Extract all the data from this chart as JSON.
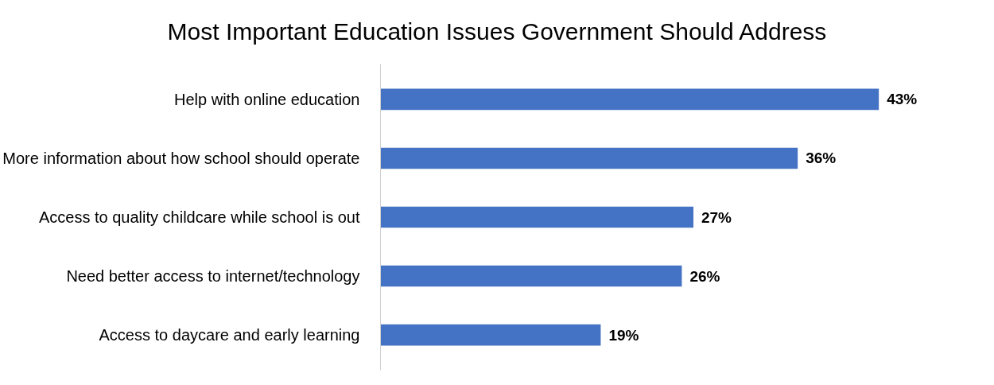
{
  "chart_data": {
    "type": "bar",
    "orientation": "horizontal",
    "title": "Most Important Education Issues Government Should Address",
    "categories": [
      "Help with online education",
      "More information about how school should operate",
      "Access to quality childcare while school is out",
      "Need better access to internet/technology",
      "Access to daycare and early learning"
    ],
    "values": [
      43,
      36,
      27,
      26,
      19
    ],
    "value_labels": [
      "43%",
      "36%",
      "27%",
      "26%",
      "19%"
    ],
    "color": "#4472c4",
    "grid": false
  }
}
